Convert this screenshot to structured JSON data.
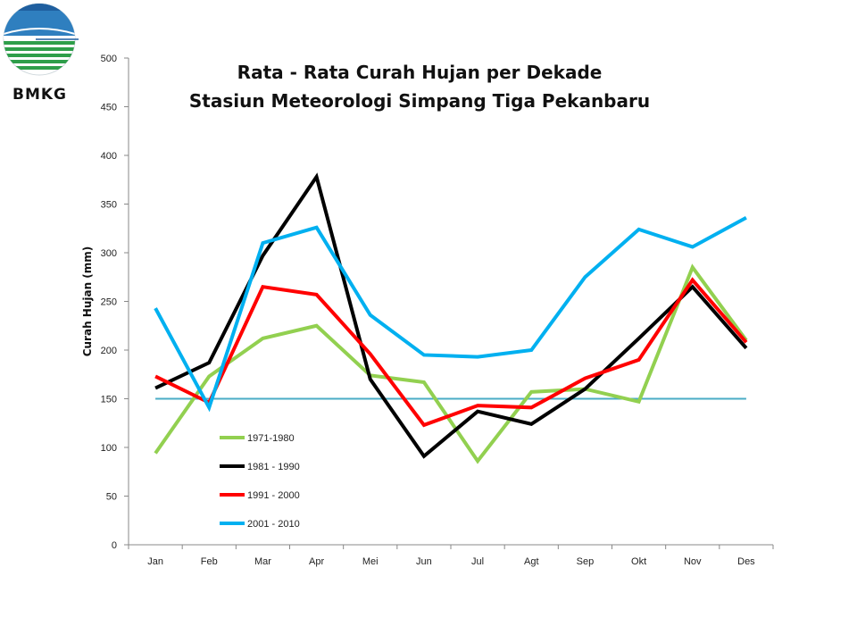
{
  "logo": {
    "text": "BMKG"
  },
  "chart_data": {
    "type": "line",
    "title": [
      "Rata - Rata Curah Hujan per Dekade",
      "Stasiun Meteorologi Simpang Tiga Pekanbaru"
    ],
    "xlabel": "",
    "ylabel": "Curah Hujan (mm)",
    "ylim": [
      0,
      500
    ],
    "yticks": [
      0,
      50,
      100,
      150,
      200,
      250,
      300,
      350,
      400,
      450,
      500
    ],
    "categories": [
      "Jan",
      "Feb",
      "Mar",
      "Apr",
      "Mei",
      "Jun",
      "Jul",
      "Agt",
      "Sep",
      "Okt",
      "Nov",
      "Des"
    ],
    "grid": false,
    "legend_position": "bottom-left",
    "reference_line": {
      "value": 150,
      "color": "#4AACC6"
    },
    "series": [
      {
        "name": "1971-1980",
        "color": "#92D050",
        "values": [
          94,
          173,
          212,
          225,
          174,
          167,
          86,
          157,
          160,
          147,
          285,
          210
        ]
      },
      {
        "name": "1981 - 1990",
        "color": "#000000",
        "values": [
          161,
          187,
          297,
          378,
          170,
          91,
          137,
          124,
          160,
          212,
          265,
          202
        ]
      },
      {
        "name": "1991 - 2000",
        "color": "#FF0000",
        "values": [
          173,
          146,
          265,
          257,
          196,
          123,
          143,
          141,
          171,
          190,
          272,
          208
        ]
      },
      {
        "name": "2001 - 2010",
        "color": "#00B0F0",
        "values": [
          243,
          141,
          310,
          326,
          236,
          195,
          193,
          200,
          275,
          324,
          306,
          336
        ]
      }
    ]
  }
}
